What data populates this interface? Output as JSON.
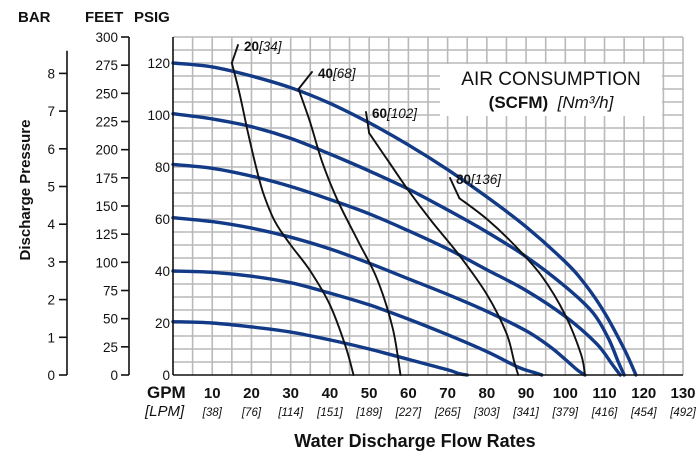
{
  "chart_data": {
    "type": "line",
    "title": "",
    "headers": {
      "bar": "BAR",
      "feet": "FEET",
      "psig": "PSIG"
    },
    "ylabel": "Discharge Pressure",
    "xlabel": "Water Discharge Flow Rates",
    "x_unit_primary": "GPM",
    "x_unit_secondary": "[LPM]",
    "x_ticks": [
      {
        "gpm": "10",
        "lpm": "[38]"
      },
      {
        "gpm": "20",
        "lpm": "[76]"
      },
      {
        "gpm": "30",
        "lpm": "[114]"
      },
      {
        "gpm": "40",
        "lpm": "[151]"
      },
      {
        "gpm": "50",
        "lpm": "[189]"
      },
      {
        "gpm": "60",
        "lpm": "[227]"
      },
      {
        "gpm": "70",
        "lpm": "[265]"
      },
      {
        "gpm": "80",
        "lpm": "[303]"
      },
      {
        "gpm": "90",
        "lpm": "[341]"
      },
      {
        "gpm": "100",
        "lpm": "[379]"
      },
      {
        "gpm": "110",
        "lpm": "[416]"
      },
      {
        "gpm": "120",
        "lpm": "[454]"
      },
      {
        "gpm": "130",
        "lpm": "[492]"
      }
    ],
    "xlim_gpm": [
      0,
      130
    ],
    "ylim_psig": [
      0,
      130
    ],
    "psig_ticks": [
      "0",
      "20",
      "40",
      "60",
      "80",
      "100",
      "120"
    ],
    "feet_ticks": [
      "0",
      "25",
      "50",
      "75",
      "100",
      "125",
      "150",
      "175",
      "200",
      "225",
      "250",
      "275",
      "300"
    ],
    "bar_ticks": [
      "0",
      "1",
      "2",
      "3",
      "4",
      "5",
      "6",
      "7",
      "8"
    ],
    "grid": true,
    "legend_box": {
      "line1": "AIR CONSUMPTION",
      "line2_bold": "(SCFM)",
      "line2_italic": "[Nm³/h]"
    },
    "series": [
      {
        "name": "",
        "x": [
          0,
          10,
          20,
          30,
          40,
          50,
          60,
          70,
          80,
          90,
          100,
          105,
          110,
          115,
          118
        ],
        "y": [
          120,
          118.5,
          115,
          110.5,
          104.5,
          97,
          88.5,
          79,
          68.5,
          57,
          43.5,
          35,
          24,
          10,
          0
        ]
      },
      {
        "name": "",
        "x": [
          0,
          10,
          20,
          30,
          40,
          50,
          60,
          70,
          80,
          90,
          100,
          107,
          111,
          113.5,
          115
        ],
        "y": [
          100.5,
          98.5,
          95.5,
          91,
          85,
          78.5,
          71.5,
          63.5,
          55,
          45.5,
          34,
          24,
          14,
          5,
          0
        ]
      },
      {
        "name": "",
        "x": [
          0,
          10,
          20,
          30,
          40,
          50,
          60,
          70,
          80,
          90,
          100,
          108,
          112,
          114
        ],
        "y": [
          81,
          79.5,
          76.5,
          72.5,
          67.5,
          62,
          55.5,
          48.5,
          40.5,
          32.5,
          22.5,
          12,
          4,
          0
        ]
      },
      {
        "name": "",
        "x": [
          0,
          10,
          20,
          30,
          40,
          50,
          60,
          70,
          80,
          90,
          96,
          100,
          103,
          105
        ],
        "y": [
          60.5,
          59,
          56.5,
          53,
          48.5,
          43,
          37,
          31,
          24.5,
          17,
          11,
          6,
          2,
          0
        ]
      },
      {
        "name": "",
        "x": [
          0,
          10,
          20,
          30,
          40,
          50,
          60,
          70,
          80,
          88,
          92,
          94
        ],
        "y": [
          40,
          39.5,
          38,
          35.5,
          31.5,
          27,
          21.5,
          15.5,
          9,
          3,
          1,
          0
        ]
      },
      {
        "name": "",
        "x": [
          0,
          10,
          20,
          30,
          40,
          50,
          60,
          70,
          73,
          75
        ],
        "y": [
          20.5,
          20,
          18.5,
          16.5,
          13.5,
          10,
          6,
          2,
          0.5,
          0
        ]
      }
    ],
    "air_series": [
      {
        "name": "20[34]",
        "x": [
          15,
          17,
          19,
          21,
          23,
          26,
          30,
          35,
          40,
          44,
          46
        ],
        "y": [
          120,
          108,
          94,
          81,
          70,
          59,
          50,
          40,
          27,
          11,
          0
        ]
      },
      {
        "name": "40[68]",
        "x": [
          32,
          35,
          38,
          42,
          47,
          52,
          56,
          58
        ],
        "y": [
          110,
          97,
          82,
          67,
          52,
          37,
          18,
          0
        ]
      },
      {
        "name": "60[102]",
        "x": [
          50,
          55,
          60,
          66,
          73,
          80,
          85,
          87,
          88
        ],
        "y": [
          93,
          82,
          71,
          59,
          46,
          31,
          16,
          5,
          0
        ]
      },
      {
        "name": "80[136]",
        "x": [
          73,
          80,
          87,
          94,
          100,
          104,
          105
        ],
        "y": [
          68,
          60,
          50,
          38,
          23,
          8,
          0
        ]
      }
    ],
    "air_labels": [
      {
        "bold": "20",
        "italic": "[34]"
      },
      {
        "bold": "40",
        "italic": "[68]"
      },
      {
        "bold": "60",
        "italic": "[102]"
      },
      {
        "bold": "80",
        "italic": "[136]"
      }
    ]
  }
}
